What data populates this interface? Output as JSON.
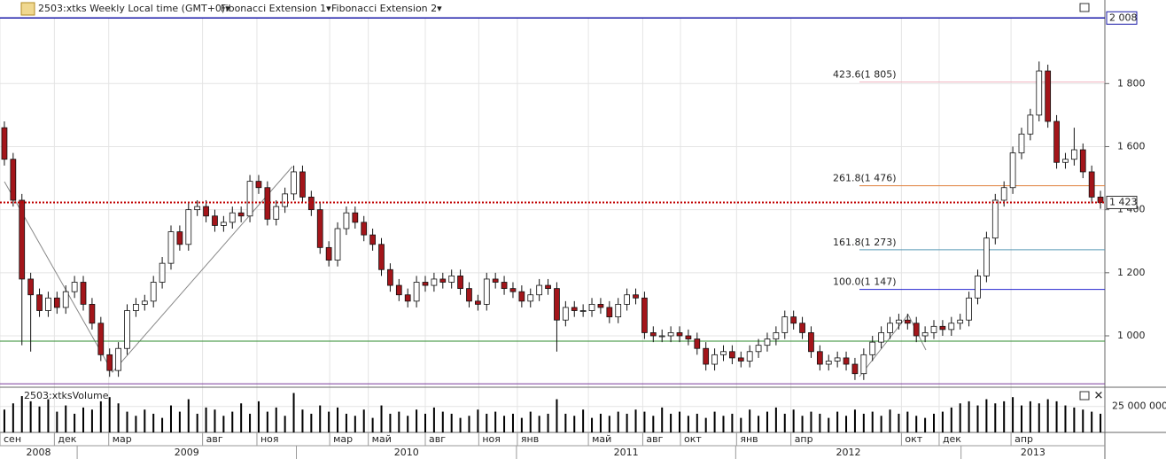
{
  "toolbar": {
    "symbol": "2503:xtks Weekly Local time (GMT+0)▾",
    "studies": [
      "Fibonacci Extension 1▾",
      "Fibonacci Extension 2▾"
    ]
  },
  "chart_data": [
    {
      "type": "candlestick",
      "up_color": "#ffffff",
      "down_color": "#a3151a",
      "open": [
        1660,
        1560,
        1430,
        1180,
        1130,
        1080,
        1120,
        1090,
        1140,
        1170,
        1100,
        1040,
        940,
        890,
        960,
        1080,
        1100,
        1110,
        1170,
        1230,
        1330,
        1290,
        1400,
        1410,
        1380,
        1350,
        1360,
        1390,
        1380,
        1490,
        1470,
        1370,
        1410,
        1450,
        1520,
        1440,
        1400,
        1280,
        1240,
        1340,
        1390,
        1360,
        1320,
        1290,
        1210,
        1160,
        1130,
        1110,
        1170,
        1160,
        1180,
        1170,
        1190,
        1150,
        1110,
        1100,
        1180,
        1170,
        1150,
        1140,
        1110,
        1130,
        1160,
        1150,
        1050,
        1090,
        1080,
        1080,
        1100,
        1090,
        1060,
        1100,
        1130,
        1120,
        1010,
        1000,
        1000,
        1010,
        1000,
        990,
        960,
        910,
        940,
        950,
        930,
        920,
        950,
        970,
        990,
        1010,
        1060,
        1040,
        1010,
        950,
        910,
        920,
        930,
        910,
        880,
        940,
        980,
        1010,
        1040,
        1050,
        1040,
        1000,
        1010,
        1030,
        1020,
        1040,
        1050,
        1120,
        1190,
        1310,
        1430,
        1470,
        1580,
        1640,
        1700,
        1840,
        1680,
        1550,
        1560,
        1590,
        1520,
        1440
      ],
      "high": [
        1680,
        1580,
        1450,
        1200,
        1150,
        1140,
        1140,
        1160,
        1190,
        1190,
        1120,
        1060,
        960,
        980,
        1100,
        1120,
        1130,
        1190,
        1250,
        1350,
        1350,
        1420,
        1430,
        1430,
        1400,
        1380,
        1410,
        1410,
        1510,
        1510,
        1490,
        1430,
        1470,
        1540,
        1540,
        1460,
        1420,
        1300,
        1360,
        1410,
        1410,
        1380,
        1340,
        1310,
        1230,
        1180,
        1150,
        1190,
        1190,
        1200,
        1200,
        1210,
        1210,
        1170,
        1130,
        1200,
        1200,
        1190,
        1170,
        1160,
        1150,
        1180,
        1180,
        1170,
        1110,
        1110,
        1100,
        1120,
        1120,
        1110,
        1120,
        1150,
        1150,
        1140,
        1030,
        1020,
        1030,
        1030,
        1020,
        1010,
        980,
        960,
        970,
        970,
        950,
        970,
        990,
        1010,
        1030,
        1080,
        1080,
        1060,
        1030,
        970,
        940,
        950,
        950,
        930,
        960,
        1000,
        1030,
        1060,
        1070,
        1070,
        1060,
        1030,
        1050,
        1050,
        1060,
        1070,
        1140,
        1210,
        1330,
        1450,
        1490,
        1600,
        1660,
        1720,
        1870,
        1860,
        1700,
        1580,
        1660,
        1610,
        1540,
        1460
      ],
      "low": [
        1540,
        1410,
        970,
        950,
        1060,
        1060,
        1070,
        1070,
        1120,
        1080,
        1020,
        920,
        870,
        870,
        940,
        1060,
        1080,
        1090,
        1150,
        1210,
        1270,
        1270,
        1380,
        1360,
        1330,
        1330,
        1340,
        1360,
        1360,
        1450,
        1350,
        1350,
        1390,
        1430,
        1420,
        1380,
        1260,
        1220,
        1220,
        1320,
        1340,
        1300,
        1270,
        1190,
        1140,
        1110,
        1090,
        1090,
        1140,
        1140,
        1150,
        1150,
        1130,
        1090,
        1080,
        1080,
        1150,
        1130,
        1120,
        1090,
        1090,
        1110,
        1130,
        950,
        1030,
        1060,
        1060,
        1060,
        1070,
        1040,
        1040,
        1080,
        1100,
        990,
        980,
        980,
        980,
        980,
        970,
        940,
        890,
        890,
        920,
        910,
        900,
        900,
        930,
        950,
        970,
        990,
        1020,
        990,
        930,
        890,
        890,
        900,
        890,
        860,
        860,
        920,
        960,
        990,
        1020,
        1020,
        980,
        980,
        990,
        1000,
        1000,
        1020,
        1030,
        1100,
        1170,
        1290,
        1410,
        1450,
        1560,
        1620,
        1680,
        1660,
        1530,
        1530,
        1540,
        1500,
        1420,
        1403
      ],
      "close": [
        1560,
        1430,
        1180,
        1130,
        1080,
        1120,
        1090,
        1140,
        1170,
        1100,
        1040,
        940,
        890,
        960,
        1080,
        1100,
        1110,
        1170,
        1230,
        1330,
        1290,
        1400,
        1410,
        1380,
        1350,
        1360,
        1390,
        1380,
        1490,
        1470,
        1370,
        1410,
        1450,
        1520,
        1440,
        1400,
        1280,
        1240,
        1340,
        1390,
        1360,
        1320,
        1290,
        1210,
        1160,
        1130,
        1110,
        1170,
        1160,
        1180,
        1170,
        1190,
        1150,
        1110,
        1100,
        1180,
        1170,
        1150,
        1140,
        1110,
        1130,
        1160,
        1150,
        1050,
        1090,
        1080,
        1080,
        1100,
        1090,
        1060,
        1100,
        1130,
        1120,
        1010,
        1000,
        1000,
        1010,
        1000,
        990,
        960,
        910,
        940,
        950,
        930,
        920,
        950,
        970,
        990,
        1010,
        1060,
        1040,
        1010,
        950,
        910,
        920,
        930,
        910,
        880,
        940,
        980,
        1010,
        1040,
        1050,
        1040,
        1000,
        1010,
        1030,
        1020,
        1040,
        1050,
        1120,
        1190,
        1310,
        1430,
        1470,
        1580,
        1640,
        1700,
        1840,
        1680,
        1550,
        1560,
        1590,
        1520,
        1440,
        1423
      ],
      "xlim": [
        0,
        126
      ],
      "xticks": [
        {
          "value": 0,
          "label": "сен"
        },
        {
          "value": 6.2,
          "label": "дек"
        },
        {
          "value": 12.4,
          "label": "мар"
        },
        {
          "value": 23.1,
          "label": "авг"
        },
        {
          "value": 29.3,
          "label": "ноя"
        },
        {
          "value": 37.6,
          "label": "мар"
        },
        {
          "value": 42,
          "label": "май"
        },
        {
          "value": 48.5,
          "label": "авг"
        },
        {
          "value": 54.6,
          "label": "ноя"
        },
        {
          "value": 59,
          "label": "янв"
        },
        {
          "value": 67.1,
          "label": "май"
        },
        {
          "value": 73.3,
          "label": "авг"
        },
        {
          "value": 77.6,
          "label": "окт"
        },
        {
          "value": 84,
          "label": "янв"
        },
        {
          "value": 90.2,
          "label": "апр"
        },
        {
          "value": 102.8,
          "label": "окт"
        },
        {
          "value": 107.1,
          "label": "дек"
        },
        {
          "value": 115.3,
          "label": "апр"
        }
      ],
      "year_ticks": [
        {
          "value": 0,
          "label": "2008"
        },
        {
          "value": 8.8,
          "label": "2009"
        },
        {
          "value": 33.8,
          "label": "2010"
        },
        {
          "value": 58.9,
          "label": "2011"
        },
        {
          "value": 83.9,
          "label": "2012"
        },
        {
          "value": 109.6,
          "label": "2013"
        }
      ],
      "ylim": [
        837,
        2065
      ],
      "yticks": [
        {
          "value": 1000,
          "label": "1 000"
        },
        {
          "value": 1200,
          "label": "1 200"
        },
        {
          "value": 1400,
          "label": "1 400"
        },
        {
          "value": 1600,
          "label": "1 600"
        },
        {
          "value": 1800,
          "label": "1 800"
        }
      ],
      "levels": [
        {
          "value": 2008,
          "label": "2 008",
          "color": "#1a1aa8"
        },
        {
          "value": 1423,
          "label": "1 423",
          "color": "#c00000"
        }
      ],
      "lines": [
        {
          "value": 983,
          "color": "#2e8b2e"
        },
        {
          "value": 848,
          "color": "#7a3a9a"
        }
      ],
      "fibonacci": [
        {
          "value": 1805,
          "label": "423.6(1 805)",
          "color": "#f2b8c4"
        },
        {
          "value": 1476,
          "label": "261.8(1 476)",
          "color": "#e0803c"
        },
        {
          "value": 1273,
          "label": "161.8(1 273)",
          "color": "#5a9ab8"
        },
        {
          "value": 1147,
          "label": "100.0(1 147)",
          "color": "#2424d0"
        }
      ]
    },
    {
      "type": "bar",
      "title": "2503:xtksVolume",
      "color": "#000000",
      "values": [
        22000000,
        28000000,
        35000000,
        30000000,
        25000000,
        32000000,
        20000000,
        26000000,
        18000000,
        24000000,
        22000000,
        30000000,
        34000000,
        28000000,
        20000000,
        16000000,
        22000000,
        18000000,
        14000000,
        26000000,
        20000000,
        32000000,
        18000000,
        24000000,
        22000000,
        16000000,
        20000000,
        28000000,
        18000000,
        30000000,
        20000000,
        24000000,
        16000000,
        38000000,
        22000000,
        18000000,
        26000000,
        20000000,
        24000000,
        18000000,
        16000000,
        22000000,
        14000000,
        26000000,
        18000000,
        20000000,
        16000000,
        22000000,
        18000000,
        24000000,
        20000000,
        18000000,
        14000000,
        16000000,
        22000000,
        18000000,
        20000000,
        16000000,
        18000000,
        14000000,
        20000000,
        16000000,
        18000000,
        32000000,
        18000000,
        16000000,
        22000000,
        14000000,
        18000000,
        16000000,
        20000000,
        18000000,
        22000000,
        20000000,
        16000000,
        24000000,
        18000000,
        20000000,
        16000000,
        18000000,
        14000000,
        20000000,
        16000000,
        18000000,
        14000000,
        22000000,
        16000000,
        20000000,
        24000000,
        18000000,
        22000000,
        16000000,
        20000000,
        18000000,
        14000000,
        20000000,
        16000000,
        22000000,
        18000000,
        20000000,
        16000000,
        22000000,
        18000000,
        20000000,
        16000000,
        14000000,
        18000000,
        20000000,
        24000000,
        28000000,
        30000000,
        26000000,
        32000000,
        28000000,
        30000000,
        34000000,
        26000000,
        30000000,
        28000000,
        32000000,
        30000000,
        26000000,
        24000000,
        22000000,
        20000000,
        18000000
      ],
      "ylim": [
        0,
        41000000
      ],
      "yticks": [
        {
          "value": 25000000,
          "label": "25 000 000"
        }
      ]
    }
  ]
}
